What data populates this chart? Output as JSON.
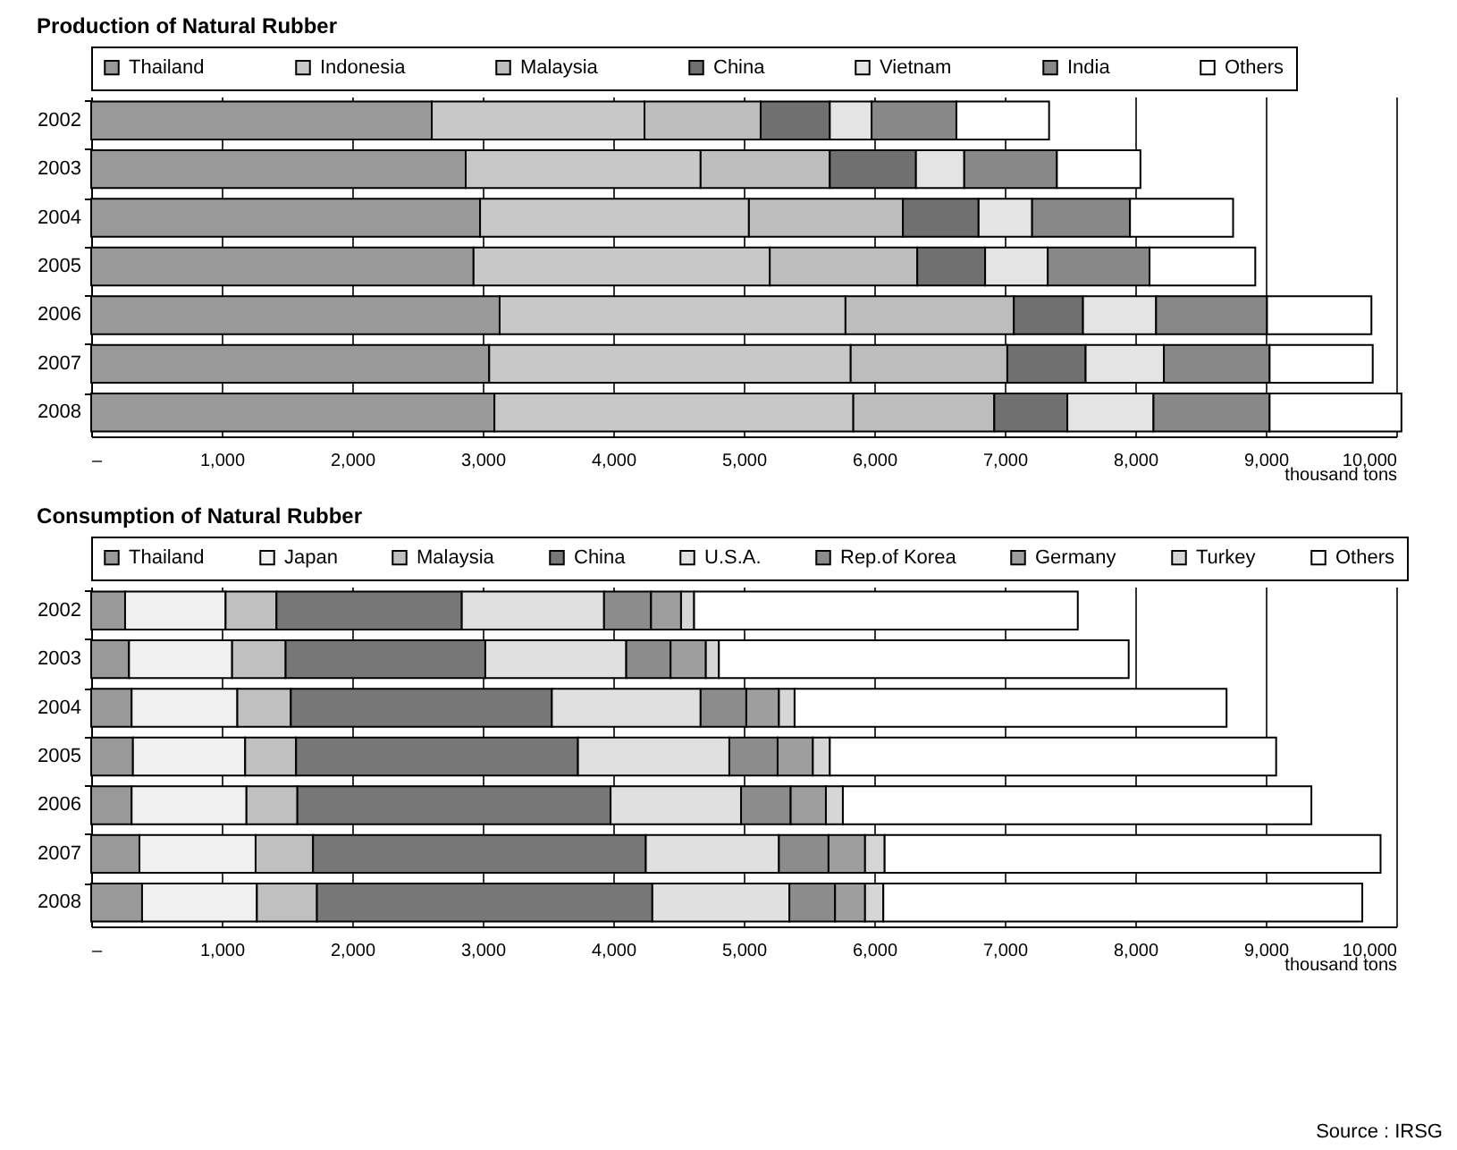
{
  "chart_data": [
    {
      "type": "bar",
      "orientation": "horizontal",
      "stacked": true,
      "title": "Production of Natural Rubber",
      "xlabel": "thousand tons",
      "categories": [
        "2002",
        "2003",
        "2004",
        "2005",
        "2006",
        "2007",
        "2008"
      ],
      "xlim": [
        0,
        10000
      ],
      "xticks": [
        {
          "value": 0,
          "label": "–"
        },
        {
          "value": 1000,
          "label": "1,000"
        },
        {
          "value": 2000,
          "label": "2,000"
        },
        {
          "value": 3000,
          "label": "3,000"
        },
        {
          "value": 4000,
          "label": "4,000"
        },
        {
          "value": 5000,
          "label": "5,000"
        },
        {
          "value": 6000,
          "label": "6,000"
        },
        {
          "value": 7000,
          "label": "7,000"
        },
        {
          "value": 8000,
          "label": "8,000"
        },
        {
          "value": 9000,
          "label": "9,000"
        },
        {
          "value": 10000,
          "label": "10,000"
        }
      ],
      "grid": "x",
      "legend": "top",
      "series": [
        {
          "name": "Thailand",
          "color": "#999999",
          "values": [
            2610,
            2870,
            2980,
            2930,
            3130,
            3050,
            3090
          ]
        },
        {
          "name": "Indonesia",
          "color": "#c8c8c8",
          "values": [
            1630,
            1800,
            2060,
            2270,
            2650,
            2770,
            2750
          ]
        },
        {
          "name": "Malaysia",
          "color": "#bdbdbd",
          "values": [
            890,
            990,
            1180,
            1130,
            1290,
            1200,
            1080
          ]
        },
        {
          "name": "China",
          "color": "#707070",
          "values": [
            530,
            660,
            580,
            520,
            530,
            600,
            560
          ]
        },
        {
          "name": "Vietnam",
          "color": "#e4e4e4",
          "values": [
            320,
            370,
            410,
            480,
            560,
            600,
            660
          ]
        },
        {
          "name": "India",
          "color": "#888888",
          "values": [
            650,
            710,
            750,
            780,
            850,
            810,
            890
          ]
        },
        {
          "name": "Others",
          "color": "#ffffff",
          "values": [
            710,
            640,
            790,
            810,
            800,
            790,
            1010
          ]
        }
      ]
    },
    {
      "type": "bar",
      "orientation": "horizontal",
      "stacked": true,
      "title": "Consumption of Natural Rubber",
      "xlabel": "thousand tons",
      "categories": [
        "2002",
        "2003",
        "2004",
        "2005",
        "2006",
        "2007",
        "2008"
      ],
      "xlim": [
        0,
        10000
      ],
      "xticks": [
        {
          "value": 0,
          "label": "–"
        },
        {
          "value": 1000,
          "label": "1,000"
        },
        {
          "value": 2000,
          "label": "2,000"
        },
        {
          "value": 3000,
          "label": "3,000"
        },
        {
          "value": 4000,
          "label": "4,000"
        },
        {
          "value": 5000,
          "label": "5,000"
        },
        {
          "value": 6000,
          "label": "6,000"
        },
        {
          "value": 7000,
          "label": "7,000"
        },
        {
          "value": 8000,
          "label": "8,000"
        },
        {
          "value": 9000,
          "label": "9,000"
        },
        {
          "value": 10000,
          "label": "10,000"
        }
      ],
      "grid": "x",
      "legend": "top",
      "annotations": [
        "Source : IRSG"
      ],
      "series": [
        {
          "name": "Thailand",
          "color": "#999999",
          "values": [
            260,
            290,
            310,
            320,
            310,
            370,
            390
          ]
        },
        {
          "name": "Japan",
          "color": "#f0f0f0",
          "values": [
            770,
            790,
            810,
            860,
            880,
            890,
            880
          ]
        },
        {
          "name": "Malaysia",
          "color": "#c0c0c0",
          "values": [
            390,
            410,
            410,
            390,
            390,
            440,
            460
          ]
        },
        {
          "name": "China",
          "color": "#777777",
          "values": [
            1420,
            1530,
            2000,
            2160,
            2400,
            2550,
            2570
          ]
        },
        {
          "name": "U.S.A.",
          "color": "#e0e0e0",
          "values": [
            1090,
            1080,
            1140,
            1160,
            1000,
            1020,
            1050
          ]
        },
        {
          "name": "Rep.of Korea",
          "color": "#8c8c8c",
          "values": [
            360,
            340,
            350,
            370,
            380,
            380,
            350
          ]
        },
        {
          "name": "Germany",
          "color": "#9e9e9e",
          "values": [
            230,
            270,
            250,
            270,
            270,
            280,
            230
          ]
        },
        {
          "name": "Turkey",
          "color": "#d6d6d6",
          "values": [
            100,
            100,
            120,
            130,
            130,
            150,
            140
          ]
        },
        {
          "name": "Others",
          "color": "#ffffff",
          "values": [
            2940,
            3140,
            3310,
            3420,
            3590,
            3800,
            3670
          ]
        }
      ]
    }
  ]
}
